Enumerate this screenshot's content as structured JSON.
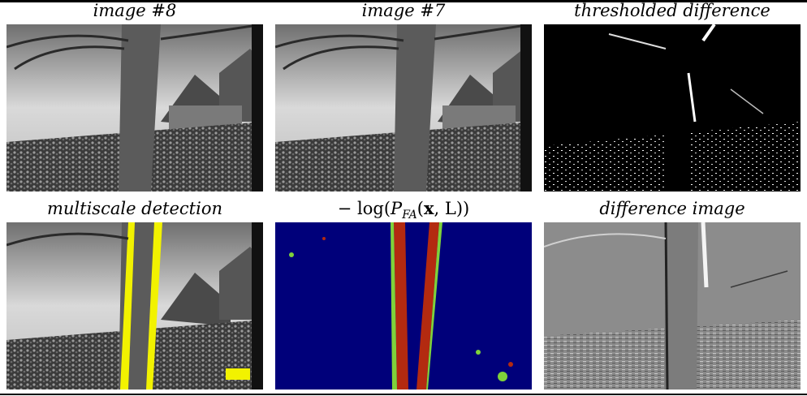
{
  "figure": {
    "panels": [
      {
        "id": "image8",
        "caption": "image #8"
      },
      {
        "id": "image7",
        "caption": "image #7"
      },
      {
        "id": "thresholded",
        "caption": "thresholded difference"
      },
      {
        "id": "multiscale",
        "caption": "multiscale detection"
      },
      {
        "id": "pfa",
        "caption_prefix": "− log(",
        "caption_P": "P",
        "caption_sub": "FA",
        "caption_args_open": "(",
        "caption_x": "x",
        "caption_args_rest": ", L))"
      },
      {
        "id": "difference",
        "caption": "difference image"
      }
    ],
    "colors": {
      "detection_overlay": "#f2f200",
      "pfa_background": "#00007a",
      "pfa_high": "#b32a10",
      "pfa_mid": "#7fd23a"
    }
  }
}
